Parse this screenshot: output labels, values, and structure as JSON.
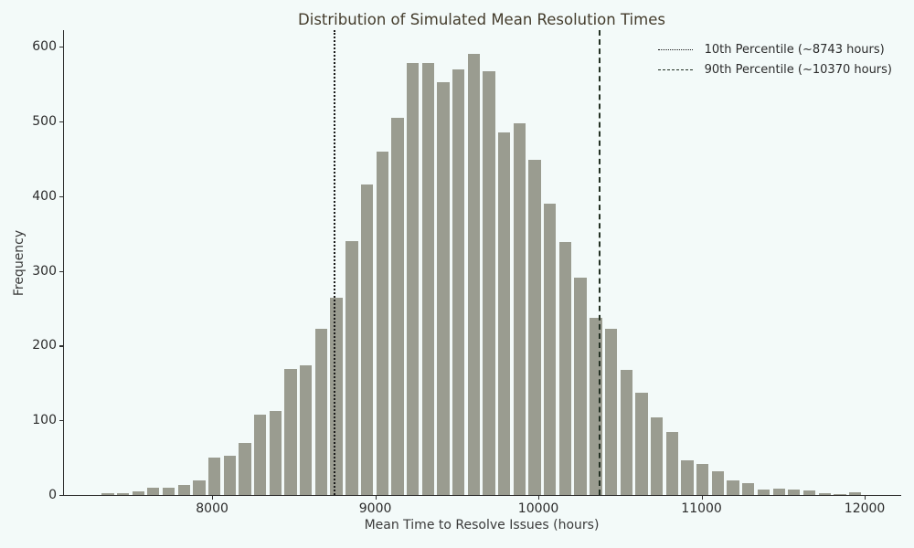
{
  "title": "Distribution of Simulated Mean Resolution Times",
  "axes": {
    "xlabel": "Mean Time to Resolve Issues (hours)",
    "ylabel": "Frequency"
  },
  "legend": {
    "items": [
      {
        "label": "10th Percentile (~8743 hours)",
        "style": "dotted"
      },
      {
        "label": "90th Percentile (~10370 hours)",
        "style": "dashed"
      }
    ]
  },
  "chart_data": {
    "type": "bar",
    "subtype": "histogram",
    "title": "Distribution of Simulated Mean Resolution Times",
    "xlabel": "Mean Time to Resolve Issues (hours)",
    "ylabel": "Frequency",
    "grid": false,
    "legend_position": "upper right",
    "bin_width": 93.5,
    "bar_rel_width": 0.8,
    "bin_centers": [
      7360,
      7453,
      7547,
      7640,
      7734,
      7827,
      7921,
      8014,
      8108,
      8201,
      8295,
      8388,
      8482,
      8575,
      8669,
      8762,
      8856,
      8949,
      9043,
      9136,
      9230,
      9323,
      9417,
      9510,
      9604,
      9697,
      9791,
      9884,
      9978,
      10071,
      10165,
      10258,
      10352,
      10445,
      10539,
      10632,
      10726,
      10819,
      10913,
      11006,
      11100,
      11193,
      11287,
      11380,
      11474,
      11567,
      11661,
      11754,
      11848,
      11941
    ],
    "frequencies": [
      2,
      2,
      5,
      10,
      10,
      13,
      20,
      50,
      53,
      70,
      108,
      113,
      169,
      174,
      222,
      264,
      340,
      415,
      460,
      505,
      578,
      578,
      552,
      570,
      590,
      567,
      485,
      497,
      449,
      390,
      339,
      291,
      237,
      222,
      168,
      137,
      104,
      84,
      46,
      42,
      32,
      19,
      16,
      7,
      9,
      7,
      6,
      2,
      1,
      4
    ],
    "xlim": [
      7092,
      12218
    ],
    "ylim": [
      0,
      622
    ],
    "x_ticks": [
      8000,
      9000,
      10000,
      11000,
      12000
    ],
    "y_ticks": [
      0,
      100,
      200,
      300,
      400,
      500,
      600
    ],
    "percentile_lines": [
      {
        "name": "10th-percentile",
        "value": 8743,
        "style": "dotted",
        "label": "10th Percentile (~8743 hours)",
        "color": "#1a1a1a"
      },
      {
        "name": "90th-percentile",
        "value": 10370,
        "style": "dashed",
        "label": "90th Percentile (~10370 hours)",
        "color": "#233023"
      }
    ],
    "colors": {
      "bar": "#9a9c90",
      "background": "#f3faf9",
      "axis": "#2f2f2f"
    }
  }
}
